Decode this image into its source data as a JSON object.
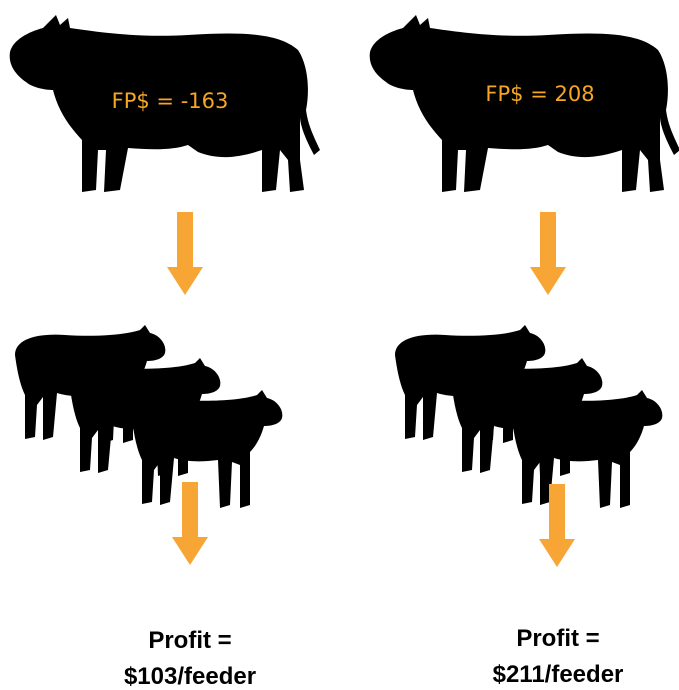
{
  "columns": [
    {
      "sire_label": "FP$ = -163",
      "profit": [
        "Profit =",
        "$103/feeder"
      ]
    },
    {
      "sire_label": "FP$ = 208",
      "profit": [
        "Profit =",
        "$211/feeder"
      ]
    }
  ]
}
